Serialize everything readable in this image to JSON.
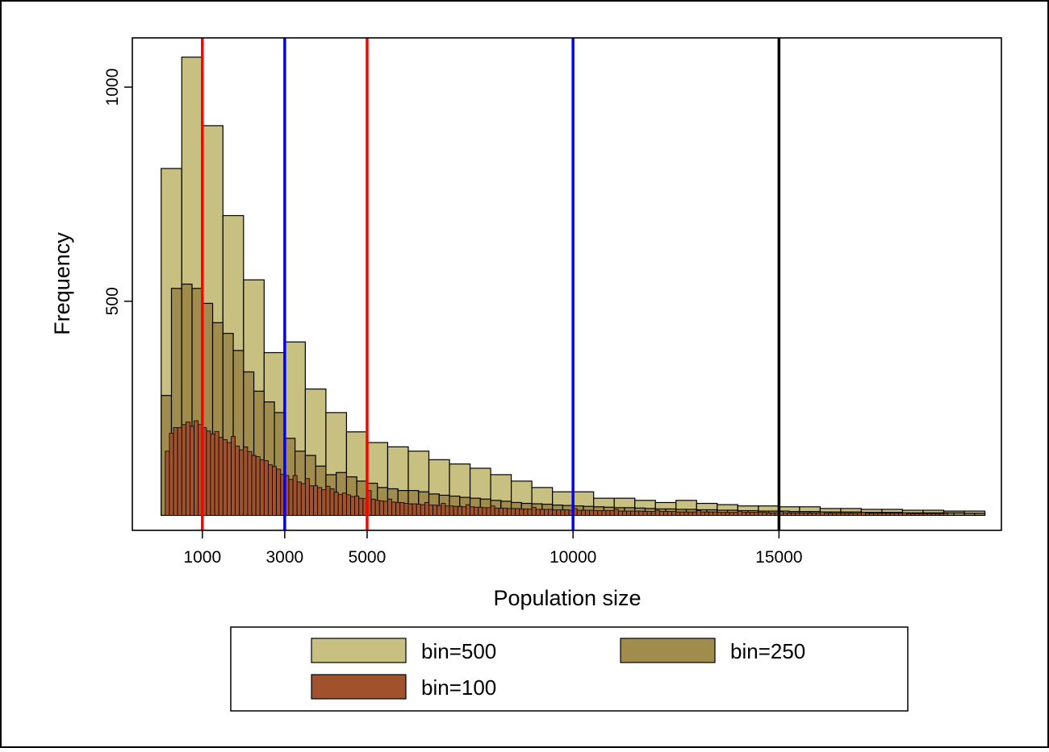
{
  "chart_data": {
    "type": "bar",
    "xlabel": "Population size",
    "ylabel": "Frequency",
    "x_ticks": [
      1000,
      3000,
      5000,
      10000,
      15000
    ],
    "y_ticks": [
      500,
      1000
    ],
    "xlim": [
      -700,
      20400
    ],
    "ylim": [
      -35,
      1115
    ],
    "vertical_lines": [
      {
        "x": 1000,
        "color": "#ff0000"
      },
      {
        "x": 3000,
        "color": "#0000ff"
      },
      {
        "x": 5000,
        "color": "#ff0000"
      },
      {
        "x": 10000,
        "color": "#0000ff"
      },
      {
        "x": 15000,
        "color": "#000000"
      }
    ],
    "legend": {
      "placement": "bottom"
    },
    "series": [
      {
        "name": "bin=500",
        "color": "#c8c080",
        "bin_start": 0,
        "bin_width": 500,
        "values": [
          810,
          1070,
          910,
          700,
          550,
          380,
          405,
          295,
          240,
          195,
          170,
          160,
          150,
          130,
          120,
          110,
          95,
          80,
          65,
          55,
          55,
          40,
          40,
          35,
          30,
          35,
          28,
          25,
          22,
          22,
          20,
          20,
          16,
          16,
          14,
          14,
          12,
          12,
          10,
          10
        ]
      },
      {
        "name": "bin=250",
        "color": "#a08c4c",
        "bin_start": 0,
        "bin_width": 250,
        "values": [
          280,
          530,
          540,
          530,
          495,
          450,
          425,
          385,
          335,
          290,
          265,
          240,
          180,
          150,
          140,
          115,
          95,
          100,
          90,
          80,
          75,
          65,
          62,
          58,
          58,
          55,
          50,
          47,
          45,
          42,
          40,
          38,
          35,
          33,
          30,
          28,
          27,
          26,
          24,
          23,
          22,
          21,
          20,
          19,
          18,
          18,
          17,
          16,
          15,
          15,
          14,
          14,
          13,
          13,
          12,
          12,
          11,
          11,
          10,
          10,
          10,
          9,
          9,
          9,
          8,
          8,
          8,
          8,
          7,
          7,
          7,
          7,
          6,
          6,
          6,
          6,
          6,
          6,
          5,
          5
        ]
      },
      {
        "name": "bin=100",
        "color": "#a0522d",
        "bin_start": 100,
        "bin_width": 100,
        "values": [
          150,
          192,
          205,
          205,
          212,
          218,
          208,
          221,
          212,
          205,
          197,
          190,
          196,
          182,
          177,
          170,
          184,
          162,
          153,
          160,
          149,
          140,
          137,
          130,
          128,
          118,
          114,
          108,
          96,
          93,
          84,
          93,
          78,
          74,
          86,
          69,
          69,
          65,
          60,
          68,
          62,
          54,
          49,
          52,
          48,
          44,
          45,
          40,
          39,
          58,
          38,
          35,
          34,
          33,
          38,
          31,
          30,
          30,
          28,
          27,
          27,
          26,
          25,
          30,
          24,
          24,
          23,
          28,
          22,
          22,
          21,
          21,
          20,
          25,
          20,
          19,
          19,
          18,
          18,
          22,
          17,
          17,
          17,
          16,
          16,
          16,
          15,
          15,
          15,
          19,
          14,
          14,
          14,
          14,
          13,
          13,
          13,
          13,
          12,
          16,
          12,
          12,
          12,
          12,
          11,
          11,
          11,
          11,
          11,
          14,
          10,
          10,
          10,
          10,
          10,
          10,
          9,
          9,
          9,
          12,
          9,
          9,
          9,
          9,
          8,
          8,
          8,
          8,
          8,
          11,
          8,
          8,
          8,
          8,
          7,
          7,
          7,
          7,
          7,
          10,
          7,
          7,
          7,
          7,
          7,
          7,
          6,
          6,
          6,
          9,
          6,
          6,
          6,
          6,
          6,
          6,
          6,
          6,
          6,
          8,
          5,
          5,
          5,
          5,
          5,
          5,
          5,
          5,
          5,
          7,
          5,
          5,
          5,
          5,
          5,
          5,
          5,
          5,
          5,
          6,
          4,
          4,
          4,
          4,
          4,
          4,
          4,
          4,
          4,
          5
        ]
      }
    ]
  }
}
